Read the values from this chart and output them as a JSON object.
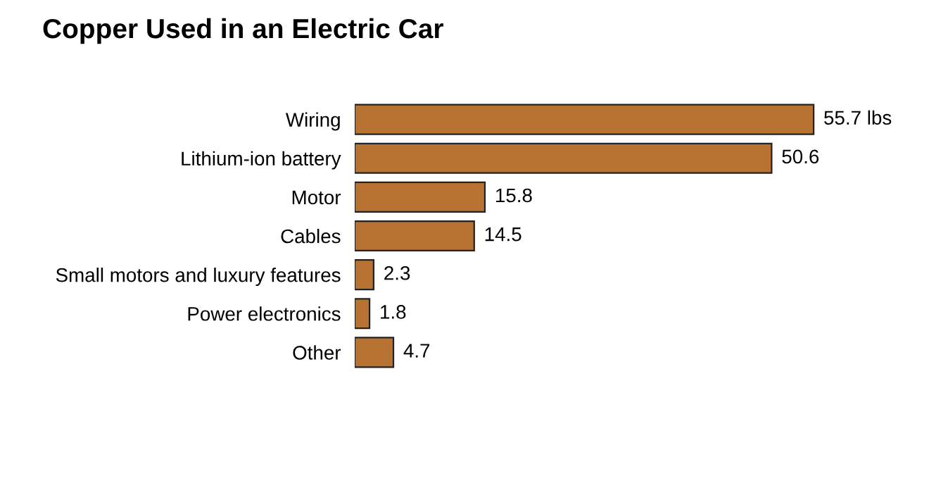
{
  "chart_data": {
    "type": "bar",
    "orientation": "horizontal",
    "title": "Copper Used in an Electric Car",
    "categories": [
      "Wiring",
      "Lithium-ion battery",
      "Motor",
      "Cables",
      "Small motors and luxury features",
      "Power electronics",
      "Other"
    ],
    "values": [
      55.7,
      50.6,
      15.8,
      14.5,
      2.3,
      1.8,
      4.7
    ],
    "value_labels": [
      "55.7 lbs",
      "50.6",
      "15.8",
      "14.5",
      "2.3",
      "1.8",
      "4.7"
    ],
    "color": "#b87333",
    "grid": false,
    "legend": false
  }
}
